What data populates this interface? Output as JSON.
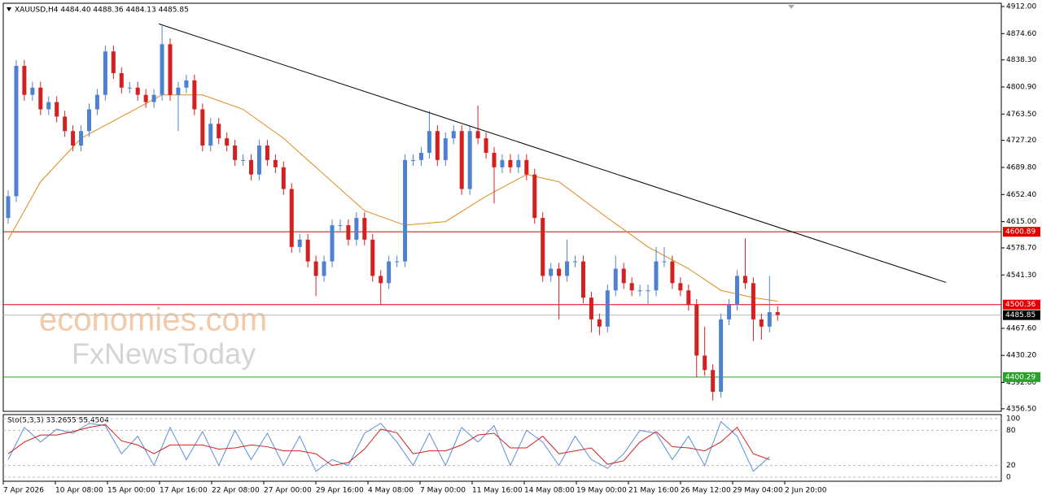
{
  "chart_data": {
    "type": "candlestick",
    "title": "XAUUSD,H4  4484.40 4488.36 4484.13 4485.85",
    "watermarks": [
      "economies.com",
      "FxNewsToday"
    ],
    "open": [
      4620,
      4650,
      4830,
      4790,
      4800,
      4770,
      4780,
      4760,
      4740,
      4720,
      4740,
      4770,
      4790,
      4850,
      4820,
      4800,
      4800,
      4790,
      4780,
      4790,
      4860,
      4790,
      4800,
      4810,
      4770,
      4720,
      4750,
      4730,
      4720,
      4700,
      4700,
      4680,
      4720,
      4700,
      4690,
      4660,
      4580,
      4590,
      4560,
      4540,
      4560,
      4610,
      4610,
      4590,
      4620,
      4590,
      4540,
      4530,
      4560,
      4560,
      4700,
      4700,
      4710,
      4740,
      4700,
      4730,
      4740,
      4660,
      4740,
      4730,
      4710,
      4690,
      4700,
      4690,
      4700,
      4680,
      4620,
      4540,
      4550,
      4540,
      4560,
      4560,
      4510,
      4480,
      4470,
      4520,
      4550,
      4530,
      4520,
      4520,
      4520,
      4560,
      4560,
      4530,
      4520,
      4500,
      4430,
      4410,
      4380,
      4480,
      4500,
      4540,
      4530,
      4480,
      4470,
      4490
    ],
    "high": [
      4658,
      4838,
      4838,
      4808,
      4808,
      4788,
      4788,
      4768,
      4748,
      4748,
      4778,
      4798,
      4858,
      4858,
      4828,
      4808,
      4808,
      4798,
      4798,
      4885,
      4868,
      4808,
      4818,
      4818,
      4778,
      4758,
      4758,
      4738,
      4728,
      4708,
      4708,
      4728,
      4728,
      4708,
      4698,
      4668,
      4598,
      4598,
      4568,
      4568,
      4618,
      4618,
      4618,
      4628,
      4628,
      4598,
      4548,
      4568,
      4568,
      4708,
      4708,
      4718,
      4768,
      4748,
      4738,
      4748,
      4748,
      4748,
      4775,
      4738,
      4718,
      4708,
      4708,
      4708,
      4708,
      4688,
      4628,
      4558,
      4558,
      4590,
      4568,
      4568,
      4518,
      4488,
      4528,
      4568,
      4558,
      4538,
      4528,
      4528,
      4580,
      4580,
      4568,
      4538,
      4528,
      4508,
      4470,
      4418,
      4488,
      4508,
      4548,
      4592,
      4538,
      4488,
      4540,
      4498
    ],
    "low": [
      4612,
      4642,
      4782,
      4782,
      4762,
      4762,
      4752,
      4732,
      4712,
      4712,
      4732,
      4762,
      4782,
      4812,
      4792,
      4792,
      4782,
      4772,
      4772,
      4782,
      4782,
      4740,
      4792,
      4762,
      4712,
      4712,
      4722,
      4712,
      4692,
      4692,
      4672,
      4672,
      4692,
      4682,
      4652,
      4572,
      4572,
      4552,
      4512,
      4532,
      4552,
      4602,
      4582,
      4582,
      4582,
      4532,
      4500,
      4522,
      4552,
      4552,
      4692,
      4692,
      4702,
      4692,
      4692,
      4722,
      4652,
      4652,
      4722,
      4702,
      4640,
      4682,
      4682,
      4682,
      4672,
      4612,
      4532,
      4532,
      4480,
      4532,
      4552,
      4502,
      4462,
      4458,
      4462,
      4512,
      4522,
      4512,
      4512,
      4500,
      4512,
      4552,
      4522,
      4512,
      4492,
      4400,
      4402,
      4368,
      4372,
      4472,
      4492,
      4522,
      4450,
      4452,
      4462,
      4478
    ],
    "close": [
      4650,
      4830,
      4790,
      4800,
      4770,
      4780,
      4760,
      4740,
      4720,
      4740,
      4770,
      4790,
      4850,
      4820,
      4800,
      4800,
      4790,
      4780,
      4790,
      4860,
      4790,
      4800,
      4810,
      4770,
      4720,
      4750,
      4730,
      4720,
      4700,
      4700,
      4680,
      4720,
      4700,
      4690,
      4660,
      4580,
      4590,
      4560,
      4540,
      4560,
      4610,
      4610,
      4590,
      4620,
      4590,
      4540,
      4530,
      4560,
      4560,
      4700,
      4700,
      4710,
      4740,
      4700,
      4730,
      4740,
      4660,
      4740,
      4730,
      4710,
      4690,
      4700,
      4690,
      4700,
      4680,
      4620,
      4540,
      4550,
      4540,
      4560,
      4560,
      4510,
      4480,
      4470,
      4520,
      4550,
      4530,
      4520,
      4520,
      4520,
      4560,
      4560,
      4530,
      4520,
      4500,
      4430,
      4410,
      4380,
      4480,
      4500,
      4540,
      4530,
      4480,
      4470,
      4490,
      4486
    ],
    "up_color": "#4f81d0",
    "down_color": "#d42020",
    "ma": {
      "color": "#e08a1e",
      "x": [
        0,
        4,
        9,
        14,
        19,
        24,
        29,
        34,
        39,
        44,
        49,
        54,
        59,
        64,
        68,
        74,
        79,
        84,
        88,
        92,
        95
      ],
      "values": [
        4590,
        4670,
        4730,
        4760,
        4790,
        4790,
        4770,
        4730,
        4680,
        4630,
        4610,
        4615,
        4650,
        4680,
        4670,
        4620,
        4580,
        4550,
        4520,
        4510,
        4505
      ]
    },
    "trendline": {
      "color": "#000000",
      "x": [
        18.6,
        115.8
      ],
      "values": [
        4888,
        4531
      ]
    },
    "levels": [
      {
        "value": 4600.89,
        "label": "4600.89",
        "color": "#e00000"
      },
      {
        "value": 4500.36,
        "label": "4500.36",
        "color": "#e00000"
      },
      {
        "value": 4400.29,
        "label": "4400.29",
        "color": "#2aa02a"
      }
    ],
    "last_price": {
      "value": 4485.85,
      "label": "4485.85"
    },
    "ylim": [
      4353,
      4916.5
    ],
    "yticks": [
      {
        "value": 4912,
        "label": "4912.00"
      },
      {
        "value": 4874.6,
        "label": "4874.60"
      },
      {
        "value": 4838.3,
        "label": "4838.30"
      },
      {
        "value": 4800.9,
        "label": "4800.90"
      },
      {
        "value": 4763.5,
        "label": "4763.50"
      },
      {
        "value": 4727.2,
        "label": "4727.20"
      },
      {
        "value": 4689.8,
        "label": "4689.80"
      },
      {
        "value": 4652.4,
        "label": "4652.40"
      },
      {
        "value": 4615,
        "label": "4615.00"
      },
      {
        "value": 4578.7,
        "label": "4578.70"
      },
      {
        "value": 4541.3,
        "label": "4541.30"
      },
      {
        "value": 4467.6,
        "label": "4467.60"
      },
      {
        "value": 4430.2,
        "label": "4430.20"
      },
      {
        "value": 4392.8,
        "label": "4392.80"
      },
      {
        "value": 4356.5,
        "label": "4356.50"
      }
    ],
    "time_labels": [
      "7 Apr 2026",
      "10 Apr 08:00",
      "15 Apr 00:00",
      "17 Apr 16:00",
      "22 Apr 08:00",
      "27 Apr 00:00",
      "29 Apr 16:00",
      "4 May 08:00",
      "7 May 00:00",
      "11 May 16:00",
      "14 May 08:00",
      "19 May 00:00",
      "21 May 16:00",
      "26 May 12:00",
      "29 May 04:00",
      "2 Jun 20:00"
    ],
    "stochastic": {
      "title": "Sto(5,3,3) 33.2655 55.4504",
      "ylim": [
        0,
        100
      ],
      "yticks": [
        100,
        80,
        20,
        0
      ],
      "x": [
        0,
        2,
        4,
        6,
        8,
        10,
        12,
        14,
        16,
        18,
        20,
        22,
        24,
        26,
        28,
        30,
        32,
        34,
        36,
        38,
        40,
        42,
        44,
        46,
        48,
        50,
        52,
        54,
        56,
        58,
        60,
        62,
        64,
        66,
        68,
        70,
        72,
        74,
        76,
        78,
        80,
        82,
        84,
        86,
        88,
        90,
        92,
        94
      ],
      "series": [
        {
          "color": "#5b8fd6",
          "values": [
            30,
            85,
            60,
            82,
            75,
            92,
            88,
            40,
            70,
            20,
            85,
            30,
            78,
            20,
            80,
            30,
            75,
            20,
            70,
            10,
            30,
            20,
            75,
            92,
            60,
            20,
            75,
            20,
            85,
            60,
            88,
            20,
            80,
            60,
            20,
            70,
            30,
            15,
            40,
            80,
            75,
            30,
            70,
            20,
            95,
            70,
            10,
            35
          ]
        },
        {
          "color": "#d42020",
          "values": [
            40,
            60,
            72,
            72,
            78,
            85,
            90,
            62,
            55,
            40,
            55,
            55,
            55,
            48,
            50,
            55,
            52,
            45,
            45,
            40,
            20,
            25,
            48,
            82,
            76,
            40,
            45,
            45,
            55,
            72,
            75,
            50,
            50,
            70,
            40,
            45,
            50,
            22,
            28,
            60,
            78,
            52,
            50,
            45,
            60,
            85,
            40,
            30
          ]
        }
      ]
    }
  }
}
